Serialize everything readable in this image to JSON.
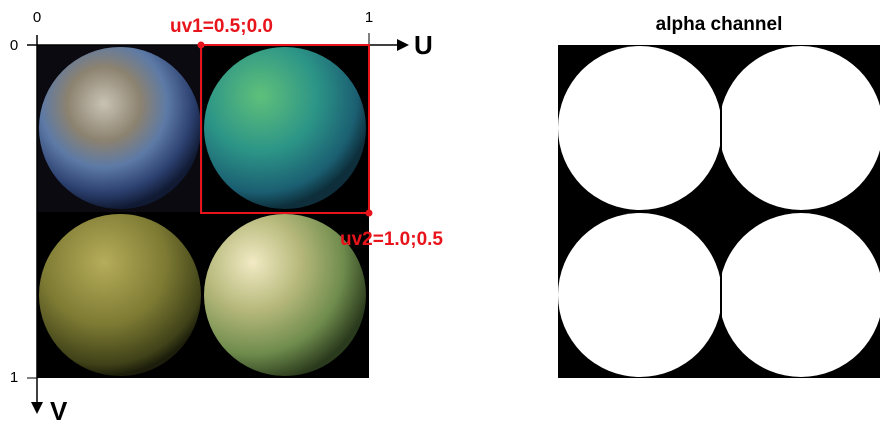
{
  "axes": {
    "u_start": "0",
    "u_end": "1",
    "v_start": "0",
    "v_end": "1",
    "u_label": "U",
    "v_label": "V"
  },
  "callouts": {
    "uv1": "uv1=0.5;0.0",
    "uv2": "uv2=1.0;0.5"
  },
  "alpha_panel": {
    "title": "alpha channel"
  }
}
